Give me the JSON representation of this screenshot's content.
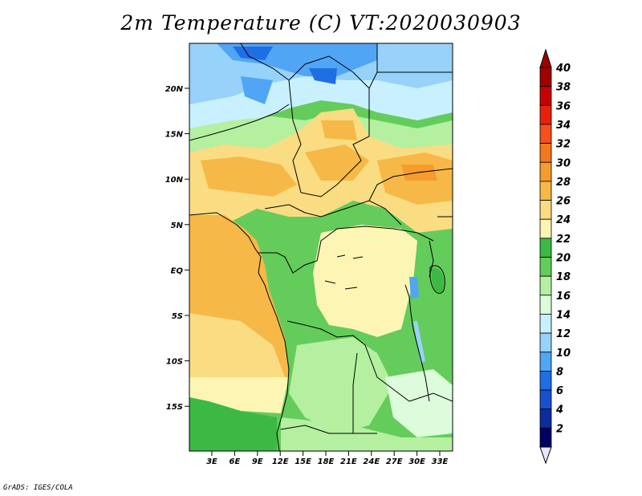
{
  "title": "2m Temperature (C) VT:2020030903",
  "footer": "GrADS: IGES/COLA",
  "map": {
    "lat_labels": [
      "20N",
      "15N",
      "10N",
      "5N",
      "EQ",
      "5S",
      "10S",
      "15S"
    ],
    "lon_labels": [
      "3E",
      "6E",
      "9E",
      "12E",
      "15E",
      "18E",
      "21E",
      "24E",
      "27E",
      "30E",
      "33E"
    ],
    "colorbar": {
      "levels": [
        "40",
        "38",
        "36",
        "34",
        "32",
        "30",
        "28",
        "26",
        "24",
        "22",
        "20",
        "18",
        "16",
        "14",
        "12",
        "10",
        "8",
        "6",
        "4",
        "2"
      ],
      "colors": [
        "#a00000",
        "#c80000",
        "#e8210c",
        "#f5501a",
        "#f2781e",
        "#f59c2d",
        "#f6b847",
        "#fadc82",
        "#fcf5b4",
        "#3bb944",
        "#64cc5a",
        "#b4f0a0",
        "#dcfcdc",
        "#c8f0ff",
        "#96d2fa",
        "#50a5f5",
        "#1e6ee6",
        "#1950d2",
        "#0a2d9b",
        "#000064"
      ],
      "top_arrow_color": "#a00000",
      "bottom_arrow_color": "#e6e6f5"
    }
  }
}
